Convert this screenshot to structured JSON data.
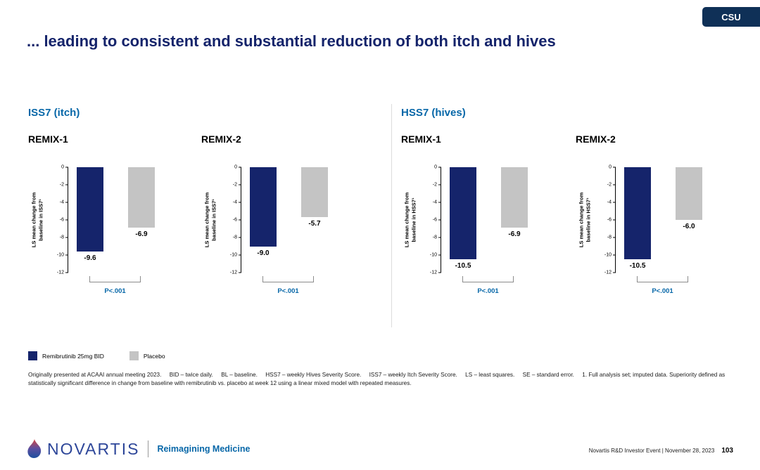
{
  "badge": {
    "label": "CSU"
  },
  "title": "... leading to consistent and substantial reduction of both itch and hives",
  "sections": [
    {
      "label": "ISS7 (itch)"
    },
    {
      "label": "HSS7 (hives)"
    }
  ],
  "colors": {
    "navy": "#15246B",
    "accent_blue": "#0767A8",
    "placebo_gray": "#C4C4C4",
    "badge_navy": "#0F3057",
    "wordmark_blue": "#2D4699"
  },
  "chart_data": [
    {
      "type": "bar",
      "section": "ISS7 (itch)",
      "title": "REMIX-1",
      "ylabel": "LS mean change from baseline in ISS7¹",
      "categories": [
        "Remibrutinib 25mg BID",
        "Placebo"
      ],
      "values": [
        -9.6,
        -6.9
      ],
      "value_labels": [
        "-9.6",
        "-6.9"
      ],
      "ylim": [
        -12,
        0
      ],
      "yticks": [
        0,
        -2,
        -4,
        -6,
        -8,
        -10,
        -12
      ],
      "p_value": "P<.001",
      "grid": false,
      "bar_colors": [
        "#15246B",
        "#C4C4C4"
      ]
    },
    {
      "type": "bar",
      "section": "ISS7 (itch)",
      "title": "REMIX-2",
      "ylabel": "LS mean change from baseline in ISS7¹",
      "categories": [
        "Remibrutinib 25mg BID",
        "Placebo"
      ],
      "values": [
        -9.0,
        -5.7
      ],
      "value_labels": [
        "-9.0",
        "-5.7"
      ],
      "ylim": [
        -12,
        0
      ],
      "yticks": [
        0,
        -2,
        -4,
        -6,
        -8,
        -10,
        -12
      ],
      "p_value": "P<.001",
      "grid": false,
      "bar_colors": [
        "#15246B",
        "#C4C4C4"
      ]
    },
    {
      "type": "bar",
      "section": "HSS7 (hives)",
      "title": "REMIX-1",
      "ylabel": "LS mean change from baseline in HSS7¹",
      "categories": [
        "Remibrutinib 25mg BID",
        "Placebo"
      ],
      "values": [
        -10.5,
        -6.9
      ],
      "value_labels": [
        "-10.5",
        "-6.9"
      ],
      "ylim": [
        -12,
        0
      ],
      "yticks": [
        0,
        -2,
        -4,
        -6,
        -8,
        -10,
        -12
      ],
      "p_value": "P<.001",
      "grid": false,
      "bar_colors": [
        "#15246B",
        "#C4C4C4"
      ]
    },
    {
      "type": "bar",
      "section": "HSS7 (hives)",
      "title": "REMIX-2",
      "ylabel": "LS mean change from baseline in HSS7¹",
      "categories": [
        "Remibrutinib 25mg BID",
        "Placebo"
      ],
      "values": [
        -10.5,
        -6.0
      ],
      "value_labels": [
        "-10.5",
        "-6.0"
      ],
      "ylim": [
        -12,
        0
      ],
      "yticks": [
        0,
        -2,
        -4,
        -6,
        -8,
        -10,
        -12
      ],
      "p_value": "P<.001",
      "grid": false,
      "bar_colors": [
        "#15246B",
        "#C4C4C4"
      ]
    }
  ],
  "legend": [
    {
      "label": "Remibrutinib 25mg BID",
      "color": "#15246B"
    },
    {
      "label": "Placebo",
      "color": "#C4C4C4"
    }
  ],
  "footnote": "Originally presented at ACAAI annual meeting 2023.     BID – twice daily.     BL – baseline.     HSS7 – weekly Hives Severity Score.     ISS7 – weekly Itch Severity Score.     LS – least squares.     SE – standard error.     1. Full analysis set; imputed data. Superiority defined as statistically significant difference in change from baseline with remibrutinib vs. placebo at week 12 using a linear mixed model with repeated measures.",
  "footer": {
    "logo_text": "NOVARTIS",
    "tagline": "Reimagining Medicine",
    "event": "Novartis R&D Investor Event | November 28, 2023",
    "page_number": "103"
  }
}
